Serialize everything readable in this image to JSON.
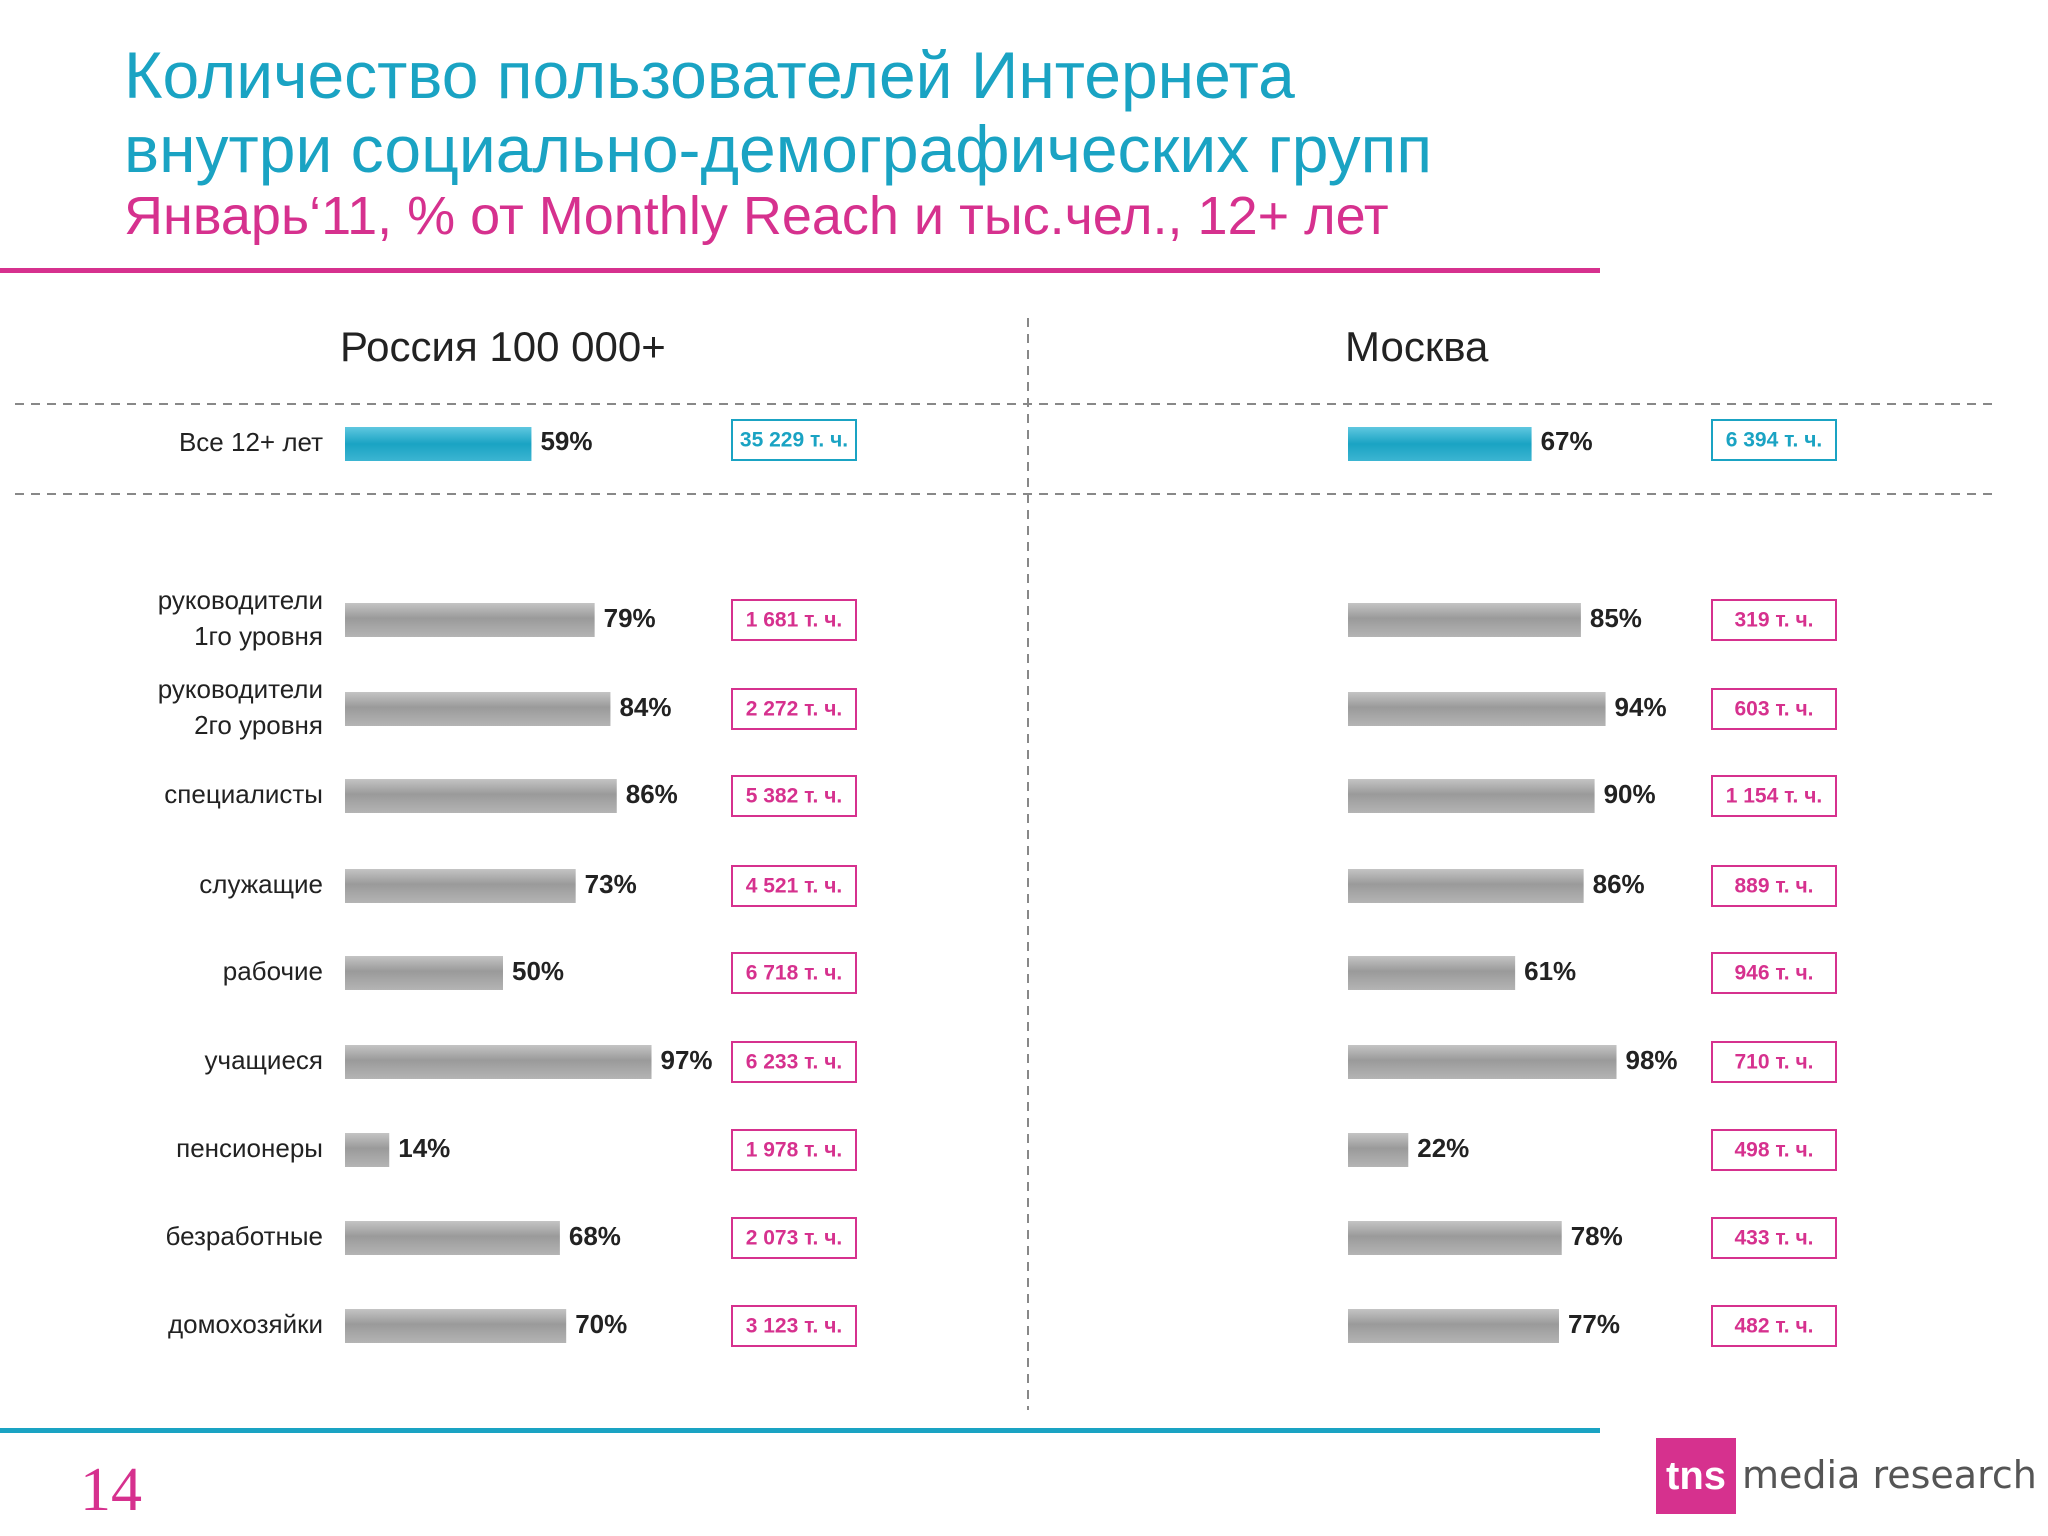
{
  "header": {
    "title_line1": "Количество пользователей Интернета",
    "title_line2": "внутри социально-демографических групп",
    "subtitle": "Январь‘11, % от Monthly Reach и тыс.чел., 12+ лет"
  },
  "footer": {
    "page_number": "14",
    "logo_mark": "tns",
    "logo_text": "media research"
  },
  "colors": {
    "accent_blue": "#1aa3c3",
    "accent_pink": "#d6318e",
    "bar_gray": "#9a9a9a",
    "text_dark": "#222222"
  },
  "chart_data": {
    "type": "bar",
    "unit": "%",
    "xlim": [
      0,
      100
    ],
    "total_row": {
      "category": "Все 12+ лет",
      "values": [
        59,
        67
      ],
      "value_labels": [
        "59%",
        "67%"
      ],
      "counts": [
        "35 229 т. ч.",
        "6 394 т. ч."
      ]
    },
    "categories": [
      "руководители\n1го уровня",
      "руководители\n2го уровня",
      "специалисты",
      "служащие",
      "рабочие",
      "учащиеся",
      "пенсионеры",
      "безработные",
      "домохозяйки"
    ],
    "series": [
      {
        "name": "Россия 100 000+",
        "values": [
          79,
          84,
          86,
          73,
          50,
          97,
          14,
          68,
          70
        ],
        "value_labels": [
          "79%",
          "84%",
          "86%",
          "73%",
          "50%",
          "97%",
          "14%",
          "68%",
          "70%"
        ],
        "counts": [
          "1 681 т. ч.",
          "2 272 т. ч.",
          "5 382 т. ч.",
          "4 521 т. ч.",
          "6 718 т. ч.",
          "6 233 т. ч.",
          "1 978 т. ч.",
          "2 073 т. ч.",
          "3 123 т. ч."
        ]
      },
      {
        "name": "Москва",
        "values": [
          85,
          94,
          90,
          86,
          61,
          98,
          22,
          78,
          77
        ],
        "value_labels": [
          "85%",
          "94%",
          "90%",
          "86%",
          "61%",
          "98%",
          "22%",
          "78%",
          "77%"
        ],
        "counts": [
          "319 т. ч.",
          "603 т. ч.",
          "1 154 т. ч.",
          "889 т. ч.",
          "946 т. ч.",
          "710 т. ч.",
          "498 т. ч.",
          "433 т. ч.",
          "482 т. ч."
        ]
      }
    ]
  }
}
